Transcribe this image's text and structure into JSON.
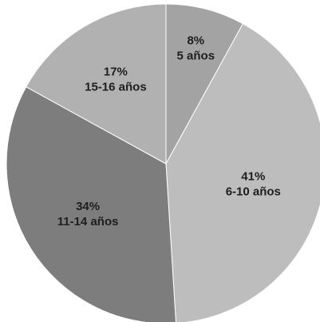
{
  "chart_data": {
    "type": "pie",
    "title": "",
    "slices": [
      {
        "label": "5 años",
        "value": 8,
        "value_label": "8%",
        "color": "#a3a3a3"
      },
      {
        "label": "6-10 años",
        "value": 41,
        "value_label": "41%",
        "color": "#bdbdbd"
      },
      {
        "label": "11-14 años",
        "value": 34,
        "value_label": "34%",
        "color": "#7d7d7d"
      },
      {
        "label": "15-16 años",
        "value": 17,
        "value_label": "17%",
        "color": "#b1b1b1"
      }
    ],
    "legend": "none"
  }
}
